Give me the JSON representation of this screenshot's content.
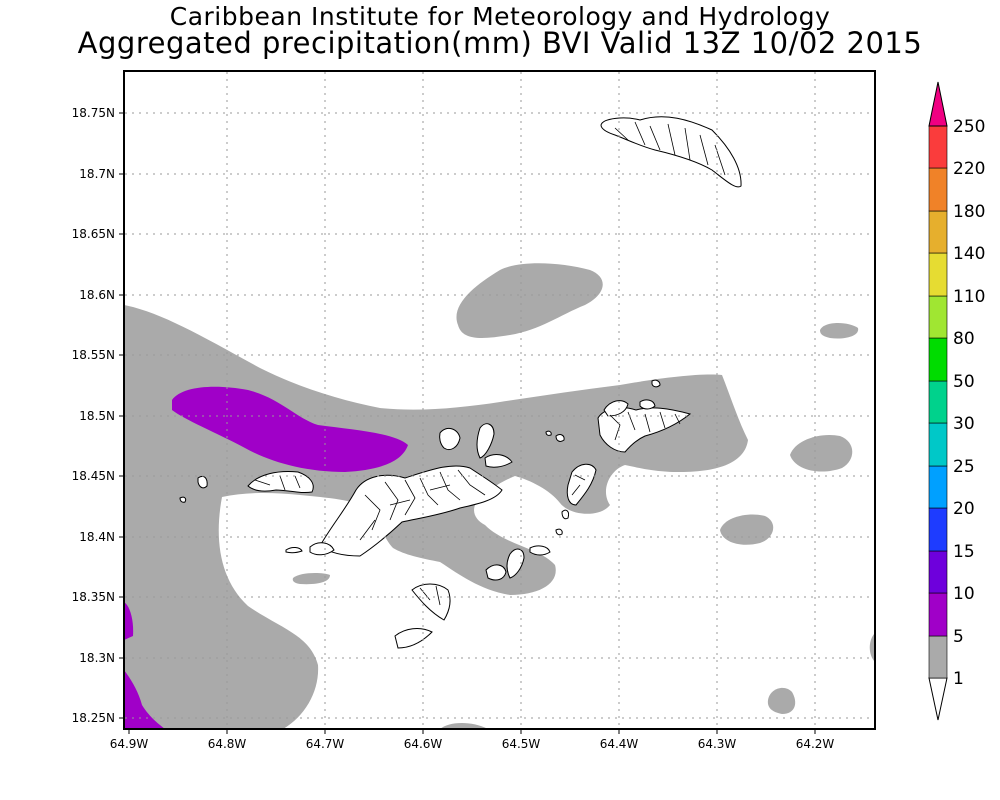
{
  "title": {
    "line1": "Caribbean Institute for Meteorology and Hydrology",
    "line2": "Aggregated precipitation(mm) BVI Valid 13Z 10/02 2015"
  },
  "map": {
    "lon_range": [
      -64.9,
      -64.135
    ],
    "lat_range": [
      18.242,
      18.79
    ],
    "lon_ticks": [
      {
        "value": -64.9,
        "label": "64.9W"
      },
      {
        "value": -64.8,
        "label": "64.8W"
      },
      {
        "value": -64.7,
        "label": "64.7W"
      },
      {
        "value": -64.6,
        "label": "64.6W"
      },
      {
        "value": -64.5,
        "label": "64.5W"
      },
      {
        "value": -64.4,
        "label": "64.4W"
      },
      {
        "value": -64.3,
        "label": "64.3W"
      },
      {
        "value": -64.2,
        "label": "64.2W"
      }
    ],
    "lat_ticks": [
      {
        "value": 18.25,
        "label": "18.25N"
      },
      {
        "value": 18.3,
        "label": "18.3N"
      },
      {
        "value": 18.35,
        "label": "18.35N"
      },
      {
        "value": 18.4,
        "label": "18.4N"
      },
      {
        "value": 18.45,
        "label": "18.45N"
      },
      {
        "value": 18.5,
        "label": "18.5N"
      },
      {
        "value": 18.55,
        "label": "18.55N"
      },
      {
        "value": 18.6,
        "label": "18.6N"
      },
      {
        "value": 18.65,
        "label": "18.65N"
      },
      {
        "value": 18.7,
        "label": "18.7N"
      },
      {
        "value": 18.75,
        "label": "18.75N"
      }
    ],
    "grid": "dotted",
    "precip_colors": {
      "1-5": "#aaaaaa",
      "5-10": "#a000c8"
    }
  },
  "colorbar": {
    "labels": [
      "1",
      "5",
      "10",
      "15",
      "20",
      "25",
      "30",
      "50",
      "80",
      "110",
      "140",
      "180",
      "220",
      "250"
    ],
    "colors": [
      "#aaaaaa",
      "#a000c8",
      "#6e00dc",
      "#1e3cff",
      "#00a0ff",
      "#00c8c8",
      "#00d28c",
      "#00dc00",
      "#a0e632",
      "#e6dc32",
      "#e6af2d",
      "#f08228",
      "#fa3c3c",
      "#f00082"
    ]
  }
}
